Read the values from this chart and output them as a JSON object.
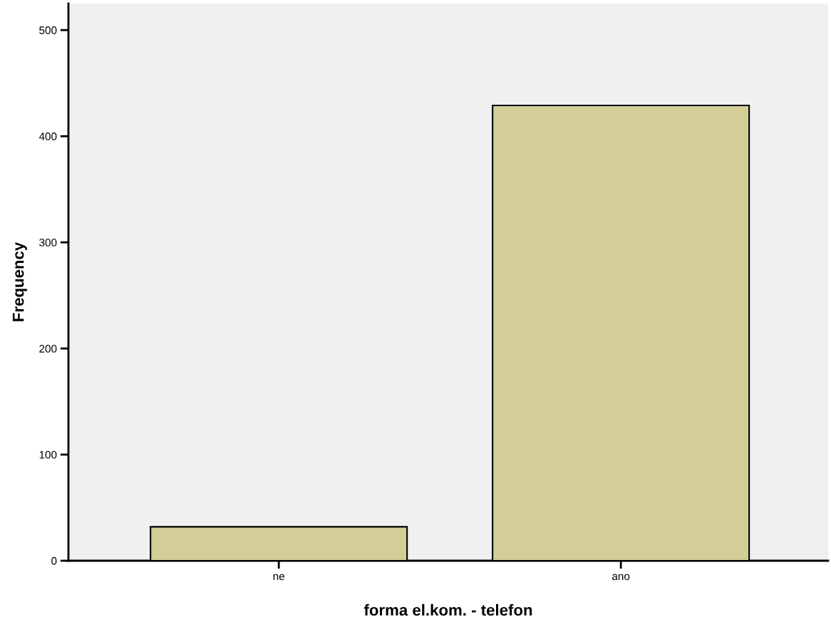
{
  "chart_data": {
    "type": "bar",
    "xlabel": "forma el.kom. - telefon",
    "ylabel": "Frequency",
    "categories": [
      "ne",
      "ano"
    ],
    "values": [
      32,
      429
    ],
    "color": "#d3ce97",
    "ylim": [
      0,
      525
    ],
    "yticks": [
      0,
      100,
      200,
      300,
      400,
      500
    ],
    "grid": false,
    "legend": false
  }
}
